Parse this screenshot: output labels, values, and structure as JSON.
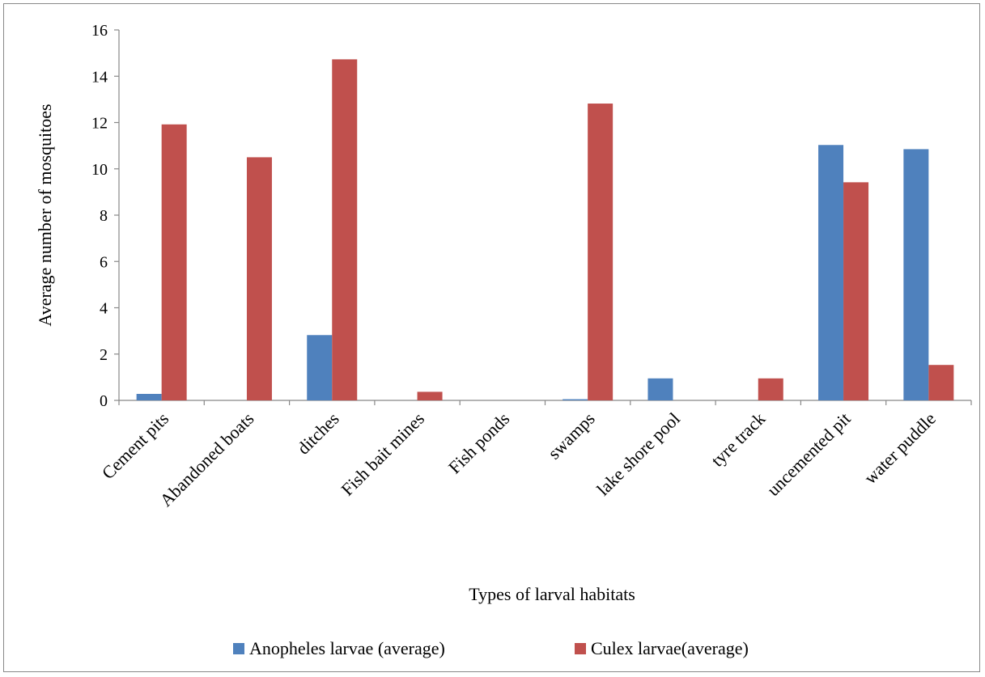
{
  "chart_data": {
    "type": "bar",
    "title": "",
    "xlabel": "Types of larval habitats",
    "ylabel": "Average number of mosquitoes",
    "ylim": [
      0,
      16
    ],
    "yticks": [
      0,
      2,
      4,
      6,
      8,
      10,
      12,
      14,
      16
    ],
    "grid": false,
    "legend_position": "bottom",
    "categories": [
      "Cement pits",
      "Abandoned boats",
      "ditches",
      "Fish bait mines",
      "Fish ponds",
      "swamps",
      "lake shore pool",
      "tyre track",
      "uncemented pit",
      "water puddle"
    ],
    "series": [
      {
        "name": "Anopheles larvae (average)",
        "color": "#4f81bd",
        "values": [
          0.28,
          0,
          2.82,
          0,
          0,
          0.05,
          0.95,
          0,
          11.03,
          10.85
        ]
      },
      {
        "name": "Culex larvae(average)",
        "color": "#c0504d",
        "values": [
          11.92,
          10.5,
          14.73,
          0.37,
          0,
          12.82,
          0,
          0.95,
          9.42,
          1.53
        ]
      }
    ]
  }
}
